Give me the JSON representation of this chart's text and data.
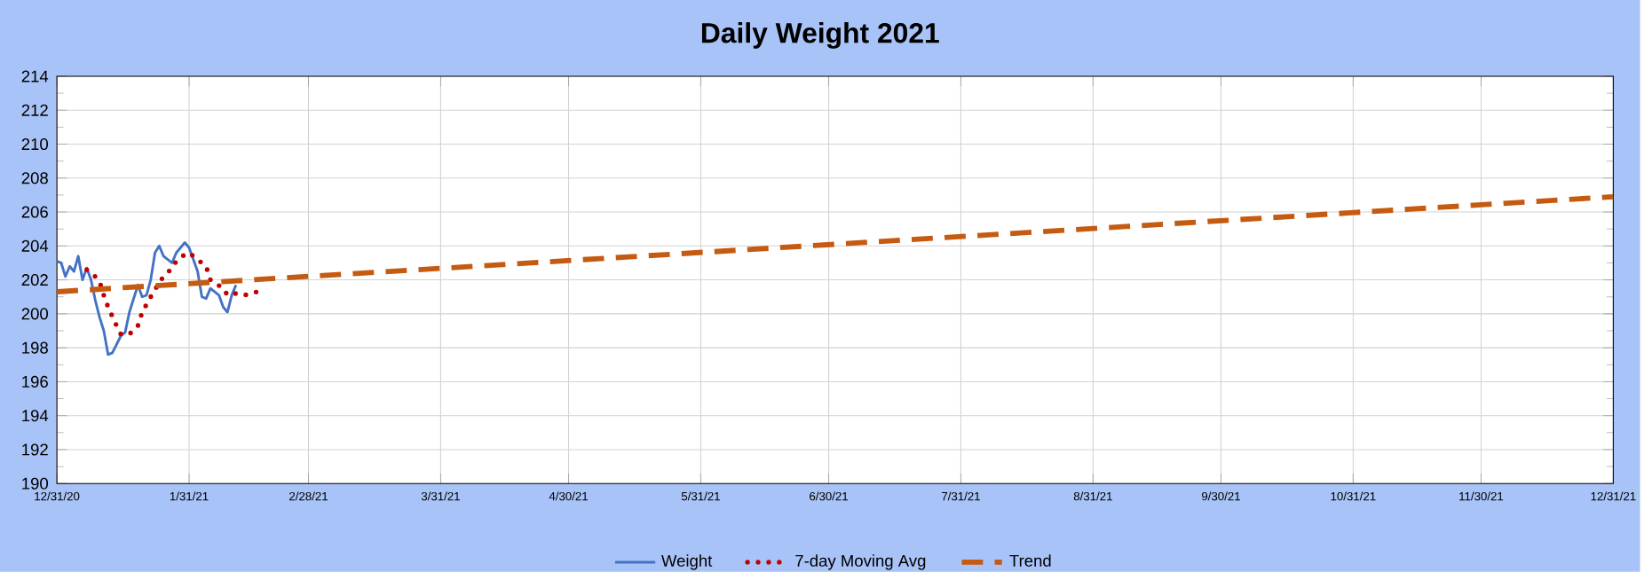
{
  "chart_data": {
    "type": "line",
    "title": "Daily Weight 2021",
    "xlim": [
      "2020-12-31",
      "2021-12-31"
    ],
    "xticks": [
      {
        "value": "2020-12-31",
        "label": "12/31/20"
      },
      {
        "value": "2021-01-31",
        "label": "1/31/21"
      },
      {
        "value": "2021-02-28",
        "label": "2/28/21"
      },
      {
        "value": "2021-03-31",
        "label": "3/31/21"
      },
      {
        "value": "2021-04-30",
        "label": "4/30/21"
      },
      {
        "value": "2021-05-31",
        "label": "5/31/21"
      },
      {
        "value": "2021-06-30",
        "label": "6/30/21"
      },
      {
        "value": "2021-07-31",
        "label": "7/31/21"
      },
      {
        "value": "2021-08-31",
        "label": "8/31/21"
      },
      {
        "value": "2021-09-30",
        "label": "9/30/21"
      },
      {
        "value": "2021-10-31",
        "label": "10/31/21"
      },
      {
        "value": "2021-11-30",
        "label": "11/30/21"
      },
      {
        "value": "2021-12-31",
        "label": "12/31/21"
      }
    ],
    "ylim": [
      190,
      214
    ],
    "yticks": [
      190,
      192,
      194,
      196,
      198,
      200,
      202,
      204,
      206,
      208,
      210,
      212,
      214
    ],
    "grid": true,
    "legend": "bottom",
    "marker": "none",
    "series": [
      {
        "name": "Weight",
        "color": "#4472c4",
        "line_style": "solid",
        "x": [
          "2020-12-31",
          "2021-01-01",
          "2021-01-02",
          "2021-01-03",
          "2021-01-04",
          "2021-01-05",
          "2021-01-06",
          "2021-01-07",
          "2021-01-08",
          "2021-01-09",
          "2021-01-10",
          "2021-01-11",
          "2021-01-12",
          "2021-01-13",
          "2021-01-15",
          "2021-01-16",
          "2021-01-17",
          "2021-01-19",
          "2021-01-20",
          "2021-01-21",
          "2021-01-22",
          "2021-01-23",
          "2021-01-24",
          "2021-01-25",
          "2021-01-27",
          "2021-01-28",
          "2021-01-29",
          "2021-01-30",
          "2021-01-31",
          "2021-02-02",
          "2021-02-03",
          "2021-02-04",
          "2021-02-05",
          "2021-02-07",
          "2021-02-08",
          "2021-02-09",
          "2021-02-10",
          "2021-02-11"
        ],
        "values": [
          203.1,
          203.0,
          202.2,
          202.8,
          202.5,
          203.4,
          202.0,
          202.7,
          202.0,
          200.8,
          199.8,
          199.0,
          197.6,
          197.7,
          198.7,
          198.9,
          200.1,
          201.7,
          201.0,
          201.1,
          202.0,
          203.6,
          204.0,
          203.4,
          203.0,
          203.6,
          203.9,
          204.2,
          203.9,
          202.5,
          201.0,
          200.9,
          201.5,
          201.1,
          200.4,
          200.1,
          201.1,
          201.7
        ]
      },
      {
        "name": "7-day Moving Avg",
        "color": "#c00000",
        "line_style": "dotted",
        "x": [
          "2021-01-07",
          "2021-01-08",
          "2021-01-09",
          "2021-01-10",
          "2021-01-11",
          "2021-01-12",
          "2021-01-14",
          "2021-01-15",
          "2021-01-17",
          "2021-01-19",
          "2021-01-20",
          "2021-01-22",
          "2021-01-23",
          "2021-01-24",
          "2021-01-27",
          "2021-01-28",
          "2021-01-30",
          "2021-01-31",
          "2021-02-02",
          "2021-02-04",
          "2021-02-05",
          "2021-02-08",
          "2021-02-09",
          "2021-02-11",
          "2021-02-13",
          "2021-02-16"
        ],
        "values": [
          202.6,
          202.4,
          202.2,
          201.9,
          201.1,
          200.4,
          199.3,
          198.8,
          198.8,
          199.3,
          200.1,
          201.0,
          201.4,
          201.9,
          202.7,
          203.1,
          203.5,
          203.6,
          203.2,
          202.8,
          202.0,
          201.5,
          201.1,
          201.2,
          201.1,
          201.3
        ]
      },
      {
        "name": "Trend",
        "color": "#c55a11",
        "line_style": "dashed",
        "x": [
          "2020-12-31",
          "2021-12-31"
        ],
        "values": [
          201.3,
          206.9
        ]
      }
    ]
  }
}
